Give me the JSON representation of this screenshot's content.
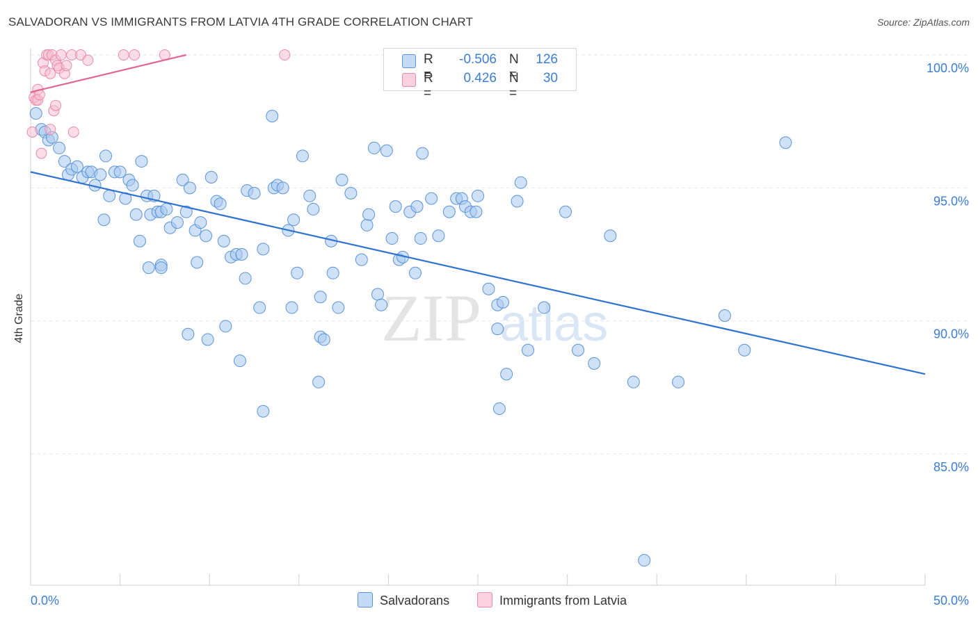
{
  "header": {
    "title": "SALVADORAN VS IMMIGRANTS FROM LATVIA 4TH GRADE CORRELATION CHART",
    "source": "Source: ZipAtlas.com"
  },
  "legend": {
    "series1": {
      "r_label": "R =",
      "r_value": "-0.506",
      "n_label": "N =",
      "n_value": "126"
    },
    "series2": {
      "r_label": "R =",
      "r_value": "0.426",
      "n_label": "N =",
      "n_value": "30"
    }
  },
  "bottom_legend": {
    "series1": "Salvadorans",
    "series2": "Immigrants from Latvia"
  },
  "watermark": {
    "zip": "ZIP",
    "atlas": "atlas"
  },
  "colors": {
    "blue_fill": "#a8c8f0",
    "blue_stroke": "#5b93d9",
    "blue_line": "#2f72d1",
    "pink_fill": "#f7bcd0",
    "pink_stroke": "#e88aaa",
    "pink_line": "#e0668f",
    "tick_text": "#3b7dd8"
  },
  "chart_data": {
    "type": "scatter",
    "title": "SALVADORAN VS IMMIGRANTS FROM LATVIA 4TH GRADE CORRELATION CHART",
    "xlabel": "",
    "ylabel": "4th Grade",
    "xlim": [
      0,
      50
    ],
    "ylim": [
      80.5,
      101
    ],
    "x_tick_labels": [
      "0.0%",
      "50.0%"
    ],
    "y_ticks": [
      85,
      90,
      95,
      100
    ],
    "y_tick_labels": [
      "85.0%",
      "90.0%",
      "95.0%",
      "100.0%"
    ],
    "grid": true,
    "legend_position": "top-center",
    "series": [
      {
        "name": "Salvadorans",
        "R": -0.506,
        "N": 126,
        "trend": {
          "x": [
            0,
            50
          ],
          "y": [
            95.6,
            88.0
          ]
        },
        "points": [
          [
            0.3,
            97.8
          ],
          [
            0.6,
            97.2
          ],
          [
            0.8,
            97.1
          ],
          [
            1.0,
            96.8
          ],
          [
            1.2,
            96.9
          ],
          [
            1.6,
            96.5
          ],
          [
            1.9,
            96.0
          ],
          [
            2.1,
            95.5
          ],
          [
            2.3,
            95.7
          ],
          [
            2.6,
            95.8
          ],
          [
            2.9,
            95.4
          ],
          [
            3.2,
            95.6
          ],
          [
            3.4,
            95.6
          ],
          [
            3.6,
            95.1
          ],
          [
            3.9,
            95.5
          ],
          [
            4.2,
            96.2
          ],
          [
            4.4,
            94.7
          ],
          [
            4.7,
            95.6
          ],
          [
            5.0,
            95.6
          ],
          [
            5.3,
            94.6
          ],
          [
            5.5,
            95.3
          ],
          [
            5.7,
            95.1
          ],
          [
            5.9,
            94.0
          ],
          [
            6.2,
            96.0
          ],
          [
            6.5,
            94.7
          ],
          [
            6.7,
            94.0
          ],
          [
            6.9,
            94.7
          ],
          [
            7.1,
            94.1
          ],
          [
            7.3,
            94.1
          ],
          [
            7.6,
            94.2
          ],
          [
            7.8,
            93.5
          ],
          [
            8.2,
            93.7
          ],
          [
            8.5,
            95.3
          ],
          [
            8.7,
            94.1
          ],
          [
            8.9,
            95.0
          ],
          [
            9.2,
            93.4
          ],
          [
            9.5,
            93.7
          ],
          [
            9.8,
            93.2
          ],
          [
            10.1,
            95.4
          ],
          [
            10.4,
            94.5
          ],
          [
            10.6,
            94.4
          ],
          [
            10.8,
            93.0
          ],
          [
            11.2,
            92.4
          ],
          [
            11.5,
            92.5
          ],
          [
            11.8,
            92.5
          ],
          [
            12.1,
            94.9
          ],
          [
            12.5,
            94.8
          ],
          [
            12.0,
            91.6
          ],
          [
            12.8,
            90.5
          ],
          [
            13.0,
            92.7
          ],
          [
            13.5,
            97.7
          ],
          [
            13.6,
            95.0
          ],
          [
            13.8,
            95.1
          ],
          [
            14.1,
            95.0
          ],
          [
            14.4,
            93.4
          ],
          [
            14.7,
            93.8
          ],
          [
            14.9,
            91.8
          ],
          [
            15.2,
            96.2
          ],
          [
            15.6,
            94.7
          ],
          [
            15.8,
            94.2
          ],
          [
            16.2,
            90.9
          ],
          [
            16.8,
            93.0
          ],
          [
            16.9,
            91.8
          ],
          [
            17.2,
            90.5
          ],
          [
            17.4,
            95.3
          ],
          [
            17.9,
            94.8
          ],
          [
            18.5,
            92.3
          ],
          [
            18.8,
            93.6
          ],
          [
            18.9,
            94.0
          ],
          [
            19.2,
            96.5
          ],
          [
            19.4,
            91.0
          ],
          [
            19.6,
            90.6
          ],
          [
            19.9,
            96.4
          ],
          [
            20.2,
            93.1
          ],
          [
            20.4,
            94.3
          ],
          [
            20.6,
            92.3
          ],
          [
            20.8,
            92.4
          ],
          [
            21.2,
            94.1
          ],
          [
            21.5,
            91.8
          ],
          [
            21.6,
            94.3
          ],
          [
            21.8,
            93.1
          ],
          [
            21.9,
            96.3
          ],
          [
            22.4,
            94.6
          ],
          [
            22.8,
            93.2
          ],
          [
            23.4,
            94.1
          ],
          [
            23.8,
            94.6
          ],
          [
            24.1,
            94.6
          ],
          [
            24.3,
            94.3
          ],
          [
            24.6,
            94.1
          ],
          [
            24.9,
            94.1
          ],
          [
            25.0,
            94.7
          ],
          [
            26.1,
            89.7
          ],
          [
            25.6,
            91.2
          ],
          [
            26.1,
            90.6
          ],
          [
            26.4,
            90.7
          ],
          [
            26.2,
            86.7
          ],
          [
            26.6,
            88.0
          ],
          [
            27.2,
            94.5
          ],
          [
            27.4,
            95.2
          ],
          [
            27.8,
            88.9
          ],
          [
            28.7,
            90.5
          ],
          [
            29.9,
            94.1
          ],
          [
            30.6,
            88.9
          ],
          [
            31.5,
            88.4
          ],
          [
            32.4,
            93.2
          ],
          [
            33.7,
            87.7
          ],
          [
            36.2,
            87.7
          ],
          [
            38.8,
            90.2
          ],
          [
            39.9,
            88.9
          ],
          [
            42.2,
            96.7
          ],
          [
            34.3,
            81.0
          ],
          [
            13.0,
            86.6
          ],
          [
            11.7,
            88.5
          ],
          [
            9.9,
            89.3
          ],
          [
            8.8,
            89.5
          ],
          [
            10.9,
            89.8
          ],
          [
            16.2,
            89.4
          ],
          [
            16.1,
            87.7
          ],
          [
            16.4,
            89.3
          ],
          [
            7.3,
            92.1
          ],
          [
            6.6,
            92.0
          ],
          [
            7.3,
            92.0
          ],
          [
            9.3,
            92.2
          ],
          [
            4.1,
            93.8
          ],
          [
            6.1,
            93.0
          ],
          [
            14.6,
            90.5
          ]
        ]
      },
      {
        "name": "Immigrants from Latvia",
        "R": 0.426,
        "N": 30,
        "trend": {
          "x": [
            0,
            8.7
          ],
          "y": [
            98.6,
            100.0
          ]
        },
        "points": [
          [
            0.1,
            97.1
          ],
          [
            0.2,
            98.4
          ],
          [
            0.3,
            98.3
          ],
          [
            0.4,
            98.7
          ],
          [
            0.4,
            98.3
          ],
          [
            0.5,
            98.5
          ],
          [
            0.6,
            96.3
          ],
          [
            0.7,
            99.7
          ],
          [
            0.8,
            99.4
          ],
          [
            0.9,
            100.0
          ],
          [
            1.0,
            100.0
          ],
          [
            1.1,
            97.2
          ],
          [
            1.2,
            100.0
          ],
          [
            1.3,
            97.9
          ],
          [
            1.4,
            98.1
          ],
          [
            1.4,
            99.8
          ],
          [
            1.5,
            99.6
          ],
          [
            1.6,
            99.5
          ],
          [
            1.7,
            100.0
          ],
          [
            1.9,
            99.3
          ],
          [
            2.0,
            99.6
          ],
          [
            2.3,
            100.0
          ],
          [
            2.4,
            97.1
          ],
          [
            2.8,
            100.0
          ],
          [
            3.2,
            99.8
          ],
          [
            5.2,
            100.0
          ],
          [
            5.8,
            100.0
          ],
          [
            7.5,
            100.0
          ],
          [
            14.2,
            100.0
          ],
          [
            1.1,
            99.3
          ]
        ]
      }
    ]
  }
}
